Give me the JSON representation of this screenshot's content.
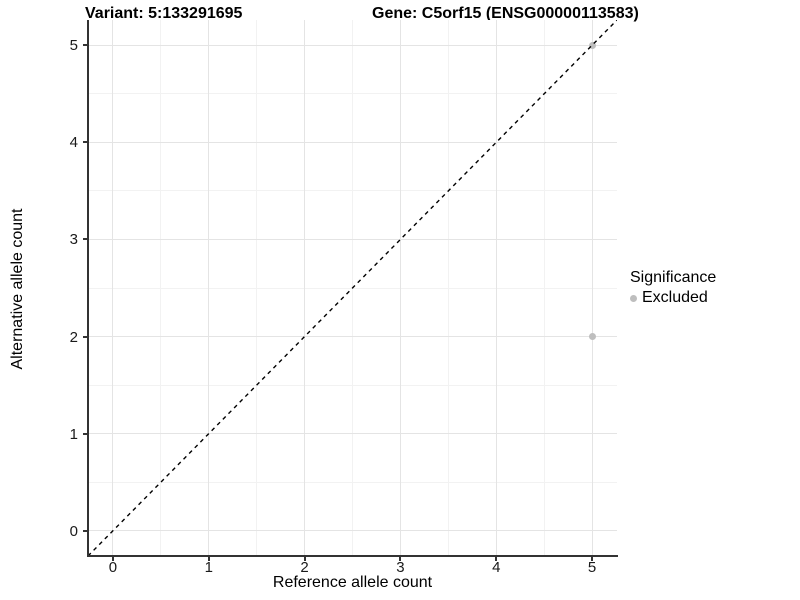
{
  "titles": {
    "left": "Variant: 5:133291695",
    "right": "Gene: C5orf15 (ENSG00000113583)"
  },
  "chart_data": {
    "type": "scatter",
    "title": "Variant: 5:133291695 — Gene: C5orf15 (ENSG00000113583)",
    "xlabel": "Reference allele count",
    "ylabel": "Alternative allele count",
    "xlim": [
      -0.26,
      5.26
    ],
    "ylim": [
      -0.26,
      5.26
    ],
    "xticks": [
      0,
      1,
      2,
      3,
      4,
      5
    ],
    "yticks": [
      0,
      1,
      2,
      3,
      4,
      5
    ],
    "minor_xticks": [
      0.5,
      1.5,
      2.5,
      3.5,
      4.5
    ],
    "minor_yticks": [
      0.5,
      1.5,
      2.5,
      3.5,
      4.5
    ],
    "grid": true,
    "identity_line": {
      "equation": "y = x",
      "style": "dashed",
      "color": "#000000"
    },
    "series": [
      {
        "name": "Excluded",
        "color": "#bebebe",
        "points": [
          {
            "x": 5,
            "y": 2
          },
          {
            "x": 5,
            "y": 5
          }
        ]
      }
    ],
    "legend": {
      "title": "Significance",
      "position": "right",
      "items": [
        {
          "label": "Excluded",
          "color": "#bebebe"
        }
      ]
    },
    "colors": {
      "grid_major": "#e4e4e4",
      "grid_minor": "#f2f2f2",
      "axis": "#333333",
      "background": "#ffffff"
    }
  }
}
